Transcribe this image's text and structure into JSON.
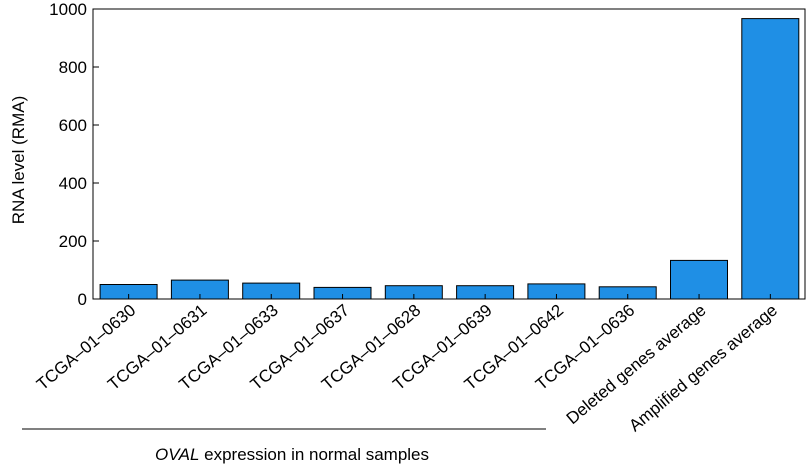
{
  "chart_data": {
    "type": "bar",
    "categories": [
      "TCGA–01–0630",
      "TCGA–01–0631",
      "TCGA–01–0633",
      "TCGA–01–0637",
      "TCGA–01–0628",
      "TCGA–01–0639",
      "TCGA–01–0642",
      "TCGA–01–0636",
      "Deleted genes average",
      "Amplified genes average"
    ],
    "values": [
      50,
      65,
      55,
      40,
      46,
      46,
      52,
      42,
      133,
      967
    ],
    "ylabel": "RNA level (RMA)",
    "ylim": [
      0,
      1000
    ],
    "yticks": [
      0,
      200,
      400,
      600,
      800,
      1000
    ],
    "bar_color": "#1f8fe5",
    "group_annotation": {
      "italic_part": "OVAL",
      "rest": " expression in normal samples",
      "span_categories": [
        0,
        7
      ]
    },
    "grid": false,
    "legend": "none"
  }
}
